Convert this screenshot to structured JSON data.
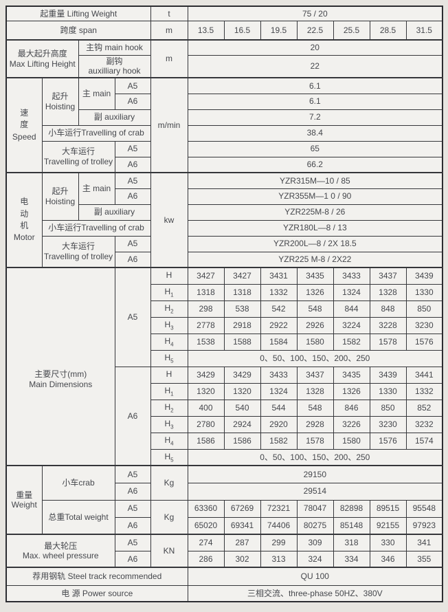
{
  "labels": {
    "a5": "A5",
    "a6": "A6"
  },
  "top": {
    "lifting_weight_label": "起重量 Lifting Weight",
    "lifting_weight_unit": "t",
    "lifting_weight_value": "75 / 20",
    "span_label": "跨度 span",
    "span_unit": "m",
    "span_values": [
      "13.5",
      "16.5",
      "19.5",
      "22.5",
      "25.5",
      "28.5",
      "31.5"
    ],
    "max_height_zh": "最大起升高度",
    "max_height_en": "Max Lifting Height",
    "max_height_unit": "m",
    "main_hook_label": "主钩 main hook",
    "main_hook_value": "20",
    "aux_hook_zh": "副钩",
    "aux_hook_en": "auxilliary hook",
    "aux_hook_value": "22"
  },
  "speed": {
    "zh1": "速",
    "zh2": "度",
    "en": "Speed",
    "hoisting_zh": "起升",
    "hoisting_en": "Hoisting",
    "main_label": "主 main",
    "aux_label": "副 auxiliary",
    "unit": "m/min",
    "main_a5_value": "6.1",
    "main_a6_value": "6.1",
    "aux_value": "7.2",
    "crab_label": "小车运行Travelling of crab",
    "crab_value": "38.4",
    "trolley_zh": "大车运行",
    "trolley_en": "Travelling of trolley",
    "trolley_a5_value": "65",
    "trolley_a6_value": "66.2"
  },
  "motor": {
    "zh1": "电",
    "zh2": "动",
    "zh3": "机",
    "en": "Motor",
    "hoisting_zh": "起升",
    "hoisting_en": "Hoisting",
    "main_label": "主 main",
    "aux_label": "副 auxiliary",
    "unit": "kw",
    "main_a5_value": "YZR315M—10 / 85",
    "main_a6_value": "YZR355M—1 0 / 90",
    "aux_value": "YZR225M-8 / 26",
    "crab_label": "小车运行Travelling of crab",
    "crab_value": "YZR180L—8 / 13",
    "trolley_zh": "大车运行",
    "trolley_en": "Travelling of trolley",
    "trolley_a5_value": "YZR200L—8 / 2X 18.5",
    "trolley_a6_value": "YZR225 M-8 / 2X22"
  },
  "dimensions": {
    "label_zh": "主要尺寸(mm)",
    "label_en": "Main Dimensions",
    "a5": {
      "rows": [
        {
          "base": "H",
          "sub": "",
          "values": [
            "3427",
            "3427",
            "3431",
            "3435",
            "3433",
            "3437",
            "3439"
          ]
        },
        {
          "base": "H",
          "sub": "1",
          "values": [
            "1318",
            "1318",
            "1332",
            "1326",
            "1324",
            "1328",
            "1330"
          ]
        },
        {
          "base": "H",
          "sub": "2",
          "values": [
            "298",
            "538",
            "542",
            "548",
            "844",
            "848",
            "850"
          ]
        },
        {
          "base": "H",
          "sub": "3",
          "values": [
            "2778",
            "2918",
            "2922",
            "2926",
            "3224",
            "3228",
            "3230"
          ]
        },
        {
          "base": "H",
          "sub": "4",
          "values": [
            "1538",
            "1588",
            "1584",
            "1580",
            "1582",
            "1578",
            "1576"
          ]
        }
      ],
      "h5": {
        "base": "H",
        "sub": "5",
        "value": "0、50、100、150、200、250"
      }
    },
    "a6": {
      "rows": [
        {
          "base": "H",
          "sub": "",
          "values": [
            "3429",
            "3429",
            "3433",
            "3437",
            "3435",
            "3439",
            "3441"
          ]
        },
        {
          "base": "H",
          "sub": "1",
          "values": [
            "1320",
            "1320",
            "1324",
            "1328",
            "1326",
            "1330",
            "1332"
          ]
        },
        {
          "base": "H",
          "sub": "2",
          "values": [
            "400",
            "540",
            "544",
            "548",
            "846",
            "850",
            "852"
          ]
        },
        {
          "base": "H",
          "sub": "3",
          "values": [
            "2780",
            "2924",
            "2920",
            "2928",
            "3226",
            "3230",
            "3232"
          ]
        },
        {
          "base": "H",
          "sub": "4",
          "values": [
            "1586",
            "1586",
            "1582",
            "1578",
            "1580",
            "1576",
            "1574"
          ]
        }
      ],
      "h5": {
        "base": "H",
        "sub": "5",
        "value": "0、50、100、150、200、250"
      }
    }
  },
  "weight": {
    "zh": "重量",
    "en": "Weight",
    "crab_label": "小车crab",
    "crab_unit": "Kg",
    "crab_a5_value": "29150",
    "crab_a6_value": "29514",
    "total_label": "总重Total weight",
    "total_unit": "Kg",
    "total_a5_values": [
      "63360",
      "67269",
      "72321",
      "78047",
      "82898",
      "89515",
      "95548"
    ],
    "total_a6_values": [
      "65020",
      "69341",
      "74406",
      "80275",
      "85148",
      "92155",
      "97923"
    ]
  },
  "wheel_pressure": {
    "zh": "最大轮压",
    "en": "Max.  wheel pressure",
    "unit": "KN",
    "a5_values": [
      "274",
      "287",
      "299",
      "309",
      "318",
      "330",
      "341"
    ],
    "a6_values": [
      "286",
      "302",
      "313",
      "324",
      "334",
      "346",
      "355"
    ]
  },
  "bottom": {
    "steel_track_label": "荐用钢轨 Steel track recommended",
    "steel_track_value": "QU 100",
    "power_label": "电 源  Power source",
    "power_value": "三相交流、three-phase 50HZ、380V"
  }
}
